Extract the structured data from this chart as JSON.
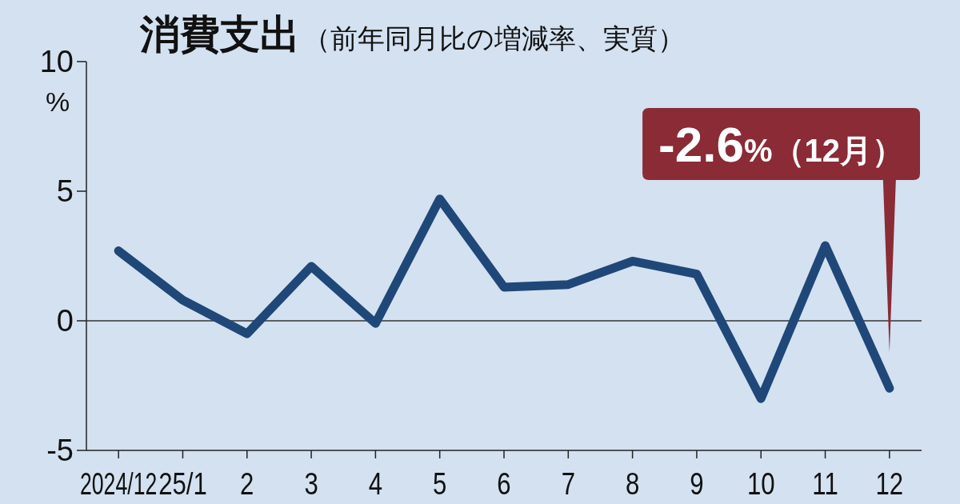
{
  "chart_data": {
    "type": "line",
    "title": "消費支出",
    "subtitle": "（前年同月比の増減率、実質）",
    "ylabel": "%",
    "categories": [
      "2024/12",
      "25/1",
      "2",
      "3",
      "4",
      "5",
      "6",
      "7",
      "8",
      "9",
      "10",
      "11",
      "12"
    ],
    "series": [
      {
        "color": "#1f4878",
        "values": [
          2.7,
          0.8,
          -0.5,
          2.1,
          -0.1,
          4.7,
          1.3,
          1.4,
          2.3,
          1.8,
          -3.0,
          2.9,
          -2.6
        ]
      }
    ],
    "ylim": [
      -5,
      10
    ],
    "yticks": [
      -5,
      0,
      5,
      10
    ],
    "ref_lines": [
      {
        "axis": "y",
        "value": 0,
        "color": "#333333"
      }
    ],
    "annotations": [
      "-2.6%（12月）"
    ],
    "grid": false
  }
}
